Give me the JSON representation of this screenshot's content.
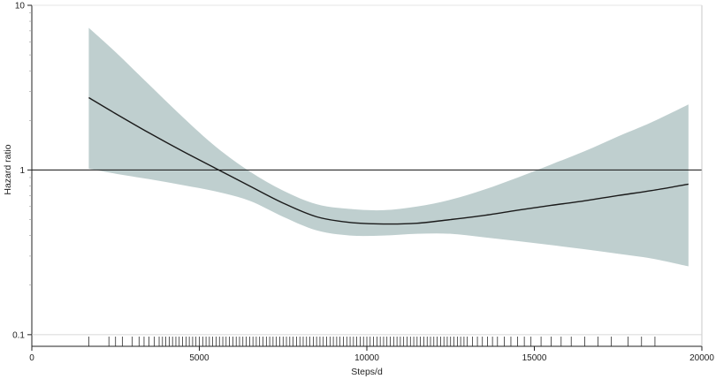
{
  "chart_data": {
    "type": "line",
    "xlabel": "Steps/d",
    "ylabel": "Hazard ratio",
    "x_scale": "linear",
    "y_scale": "log",
    "xlim": [
      0,
      20000
    ],
    "ylim": [
      0.085,
      10
    ],
    "x_ticks": [
      0,
      5000,
      10000,
      15000,
      20000
    ],
    "x_tick_labels": [
      "0",
      "5000",
      "10000",
      "15000",
      "20000"
    ],
    "y_ticks": [
      0.1,
      1,
      10
    ],
    "y_tick_labels": [
      "0.1",
      "1",
      "10"
    ],
    "reference_line_y": 1,
    "grid": false,
    "colors": {
      "ci_band": "#bfcfcf",
      "line": "#1a1a1a",
      "axis": "#222222"
    },
    "series": [
      {
        "role": "estimate",
        "x": [
          1700,
          2500,
          3500,
          4500,
          5500,
          6500,
          7500,
          8500,
          9500,
          10500,
          11500,
          12500,
          13500,
          14500,
          15500,
          16500,
          17500,
          18500,
          19600
        ],
        "y": [
          2.75,
          2.2,
          1.68,
          1.3,
          1.02,
          0.8,
          0.63,
          0.52,
          0.48,
          0.47,
          0.475,
          0.5,
          0.53,
          0.57,
          0.61,
          0.65,
          0.7,
          0.75,
          0.82
        ]
      }
    ],
    "ci_band": {
      "x": [
        1700,
        2500,
        3500,
        4500,
        5500,
        6500,
        7500,
        8500,
        9500,
        10500,
        11500,
        12500,
        13500,
        14500,
        15500,
        16500,
        17500,
        18500,
        19600
      ],
      "lower": [
        1.02,
        0.95,
        0.88,
        0.81,
        0.74,
        0.65,
        0.52,
        0.43,
        0.4,
        0.4,
        0.41,
        0.41,
        0.39,
        0.37,
        0.35,
        0.33,
        0.31,
        0.29,
        0.26
      ],
      "upper": [
        7.3,
        5.2,
        3.3,
        2.1,
        1.38,
        0.98,
        0.75,
        0.62,
        0.58,
        0.57,
        0.6,
        0.66,
        0.76,
        0.9,
        1.08,
        1.3,
        1.6,
        1.95,
        2.5
      ]
    },
    "rug_x": [
      1700,
      2300,
      2500,
      2700,
      3000,
      3200,
      3350,
      3500,
      3650,
      3800,
      3900,
      4000,
      4100,
      4200,
      4300,
      4400,
      4500,
      4600,
      4700,
      4800,
      4900,
      5000,
      5100,
      5200,
      5300,
      5400,
      5500,
      5600,
      5700,
      5800,
      5900,
      6000,
      6100,
      6200,
      6300,
      6400,
      6500,
      6600,
      6700,
      6800,
      6900,
      7000,
      7100,
      7200,
      7300,
      7400,
      7500,
      7600,
      7700,
      7800,
      7900,
      8000,
      8100,
      8200,
      8300,
      8400,
      8500,
      8600,
      8700,
      8800,
      8900,
      9000,
      9100,
      9200,
      9300,
      9400,
      9500,
      9600,
      9700,
      9800,
      9900,
      10000,
      10100,
      10200,
      10300,
      10400,
      10500,
      10600,
      10700,
      10800,
      10900,
      11000,
      11100,
      11200,
      11300,
      11400,
      11500,
      11600,
      11700,
      11800,
      11900,
      12000,
      12100,
      12200,
      12300,
      12400,
      12500,
      12600,
      12700,
      12800,
      12900,
      13000,
      13150,
      13300,
      13450,
      13600,
      13750,
      13900,
      14100,
      14300,
      14500,
      14700,
      14900,
      15200,
      15500,
      15800,
      16100,
      16500,
      16900,
      17300,
      17800,
      18200,
      18600
    ]
  }
}
